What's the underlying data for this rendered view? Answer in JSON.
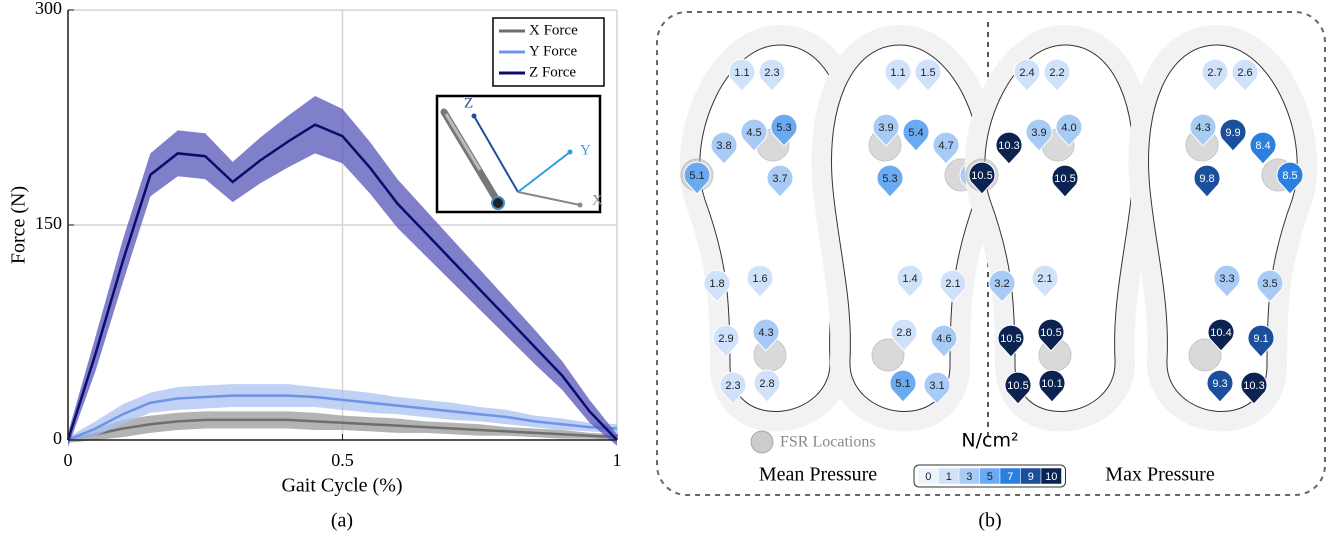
{
  "chart_data": {
    "type": "line",
    "x_label": "Gait Cycle (%)",
    "y_label": "Force (N)",
    "caption": "(a)",
    "x": [
      0,
      0.05,
      0.1,
      0.15,
      0.2,
      0.25,
      0.3,
      0.35,
      0.4,
      0.45,
      0.5,
      0.55,
      0.6,
      0.65,
      0.7,
      0.75,
      0.8,
      0.85,
      0.9,
      0.95,
      1
    ],
    "series": [
      {
        "name": "X Force",
        "color": "#6e6e6e",
        "band_color": "#9a9a9a",
        "values": [
          0,
          4,
          8,
          11,
          13,
          14,
          14,
          14,
          14,
          13,
          12,
          11,
          10,
          9,
          8,
          7,
          6,
          5,
          4,
          3,
          2
        ],
        "error": [
          2,
          4,
          6,
          6,
          6,
          6,
          6,
          6,
          6,
          6,
          5,
          5,
          5,
          4,
          4,
          4,
          3,
          3,
          3,
          2,
          2
        ]
      },
      {
        "name": "Y Force",
        "color": "#6f93e8",
        "band_color": "#a9c2f2",
        "values": [
          0,
          8,
          18,
          26,
          29,
          30,
          31,
          31,
          31,
          30,
          28,
          26,
          24,
          22,
          20,
          18,
          16,
          13,
          11,
          9,
          8
        ],
        "error": [
          2,
          5,
          7,
          7,
          8,
          8,
          8,
          8,
          8,
          7,
          7,
          7,
          6,
          6,
          6,
          5,
          5,
          4,
          4,
          3,
          3
        ]
      },
      {
        "name": "Z Force",
        "color": "#0b0b6e",
        "band_color": "#5555b8",
        "values": [
          0,
          60,
          125,
          185,
          200,
          198,
          180,
          195,
          208,
          220,
          212,
          190,
          165,
          145,
          125,
          105,
          85,
          65,
          45,
          20,
          0
        ],
        "error": [
          5,
          12,
          15,
          15,
          16,
          16,
          14,
          16,
          18,
          20,
          19,
          18,
          17,
          16,
          15,
          14,
          13,
          12,
          10,
          8,
          4
        ]
      }
    ],
    "xlim": [
      0,
      1
    ],
    "xticks": [
      0,
      0.5,
      1
    ],
    "ylim": [
      0,
      300
    ],
    "yticks": [
      0,
      150,
      300
    ],
    "grid": true,
    "legend": "top-right",
    "inset_axes": [
      "Z",
      "Y",
      "X"
    ]
  },
  "pressure_figure": {
    "caption": "(b)",
    "fsr_label": "FSR Locations",
    "unit": "N/cm²",
    "scale": [
      {
        "value": 0,
        "color": "#eef4fc"
      },
      {
        "value": 1,
        "color": "#cfe2fa"
      },
      {
        "value": 3,
        "color": "#a7cbf5"
      },
      {
        "value": 5,
        "color": "#6aaaf0"
      },
      {
        "value": 7,
        "color": "#2a7fe0"
      },
      {
        "value": 9,
        "color": "#1a4f9c"
      },
      {
        "value": 10,
        "color": "#0b2350"
      }
    ],
    "maps": [
      {
        "title": "Mean Pressure",
        "insoles": [
          [
            "1.1",
            "2.3",
            "4.5",
            "5.3",
            "3.8",
            "5.1",
            "3.7",
            "1.8",
            "1.6",
            "2.9",
            "4.3",
            "2.3",
            "2.8"
          ],
          [
            "1.5",
            "1.1",
            "5.4",
            "3.9",
            "4.7",
            "4.1",
            "5.3",
            "2.1",
            "1.4",
            "4.6",
            "2.8",
            "3.1",
            "5.1"
          ]
        ]
      },
      {
        "title": "Max Pressure",
        "insoles": [
          [
            "2.4",
            "2.2",
            "3.9",
            "4.0",
            "10.3",
            "10.5",
            "10.5",
            "3.2",
            "2.1",
            "10.5",
            "10.5",
            "10.5",
            "10.1"
          ],
          [
            "2.6",
            "2.7",
            "9.9",
            "4.3",
            "8.4",
            "8.5",
            "9.8",
            "3.5",
            "3.3",
            "9.1",
            "10.4",
            "10.3",
            "9.3"
          ]
        ]
      }
    ]
  }
}
